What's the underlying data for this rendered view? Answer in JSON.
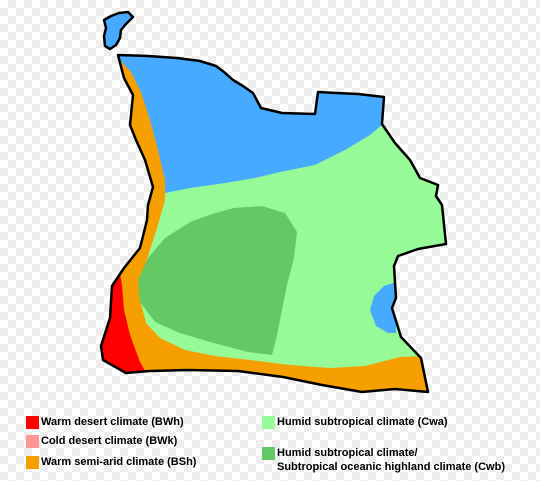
{
  "map": {
    "colors": {
      "outline": "#000000",
      "Cwa": "#96fa96",
      "Cwb": "#64c864",
      "BSh": "#f5a000",
      "BWh": "#ff0000",
      "BWk": "#ff9696",
      "Aw": "#46aaff"
    }
  },
  "legend": {
    "items": [
      {
        "key": "BWh",
        "label": "Warm desert climate (BWh)",
        "color": "#ff0000"
      },
      {
        "key": "BWk",
        "label": "Cold desert climate (BWk)",
        "color": "#ff9696"
      },
      {
        "key": "BSh",
        "label": "Warm semi-arid climate (BSh)",
        "color": "#f5a000"
      },
      {
        "key": "Cwa",
        "label": "Humid subtropical climate (Cwa)",
        "color": "#96fa96"
      },
      {
        "key": "Cwb",
        "label_line1": "Humid subtropical climate/",
        "label_line2": "Subtropical oceanic highland climate (Cwb)",
        "color": "#64c864"
      }
    ]
  }
}
